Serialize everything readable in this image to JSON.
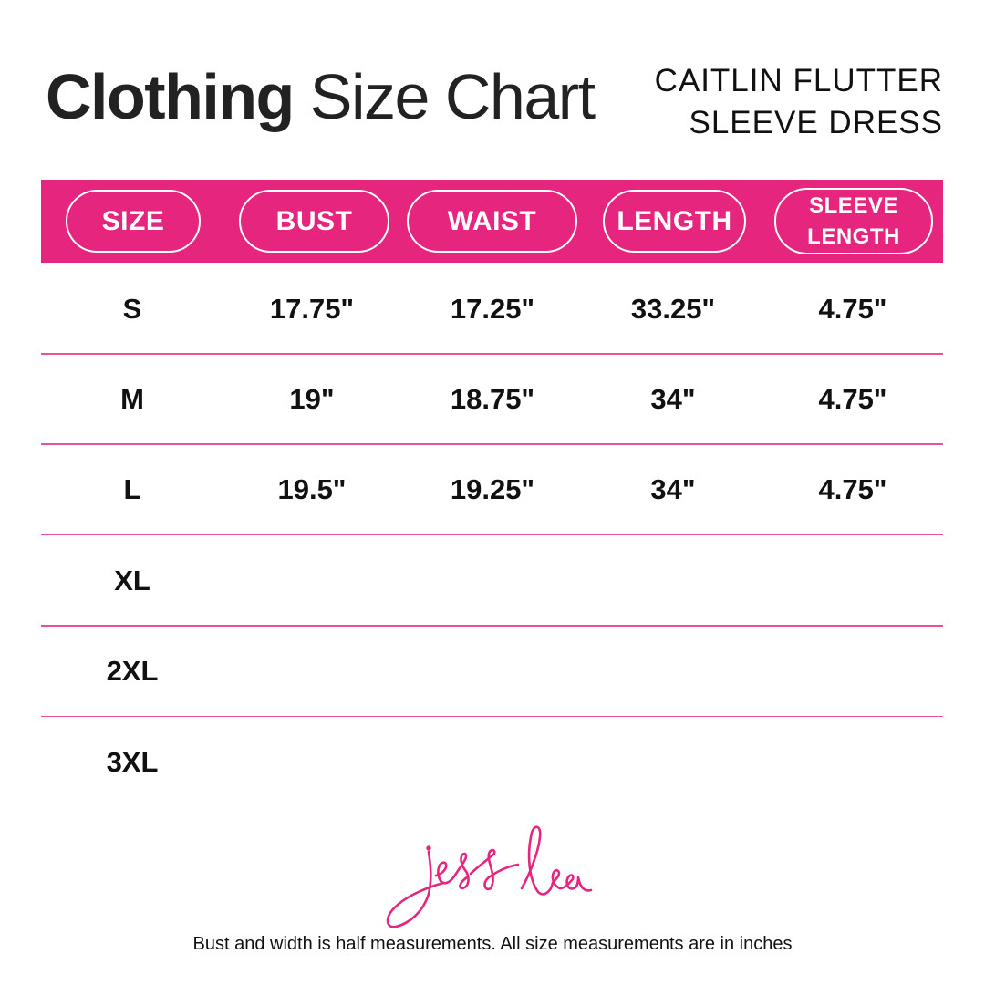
{
  "title": {
    "bold": "Clothing",
    "light": "Size Chart"
  },
  "product": {
    "line1": "CAITLIN FLUTTER",
    "line2": "SLEEVE DRESS"
  },
  "colors": {
    "accent": "#e6257f",
    "text": "#111111"
  },
  "table": {
    "headers": [
      {
        "label": "SIZE"
      },
      {
        "label": "BUST"
      },
      {
        "label": "WAIST"
      },
      {
        "label": "LENGTH"
      },
      {
        "line1": "SLEEVE",
        "line2": "LENGTH"
      }
    ],
    "rows": [
      [
        "S",
        "17.75\"",
        "17.25\"",
        "33.25\"",
        "4.75\""
      ],
      [
        "M",
        "19\"",
        "18.75\"",
        "34\"",
        "4.75\""
      ],
      [
        "L",
        "19.5\"",
        "19.25\"",
        "34\"",
        "4.75\""
      ],
      [
        "XL",
        "",
        "",
        "",
        ""
      ],
      [
        "2XL",
        "",
        "",
        "",
        ""
      ],
      [
        "3XL",
        "",
        "",
        "",
        ""
      ]
    ]
  },
  "logo": {
    "text": "jess lea"
  },
  "footnote": "Bust and width is half measurements. All size measurements are in inches"
}
